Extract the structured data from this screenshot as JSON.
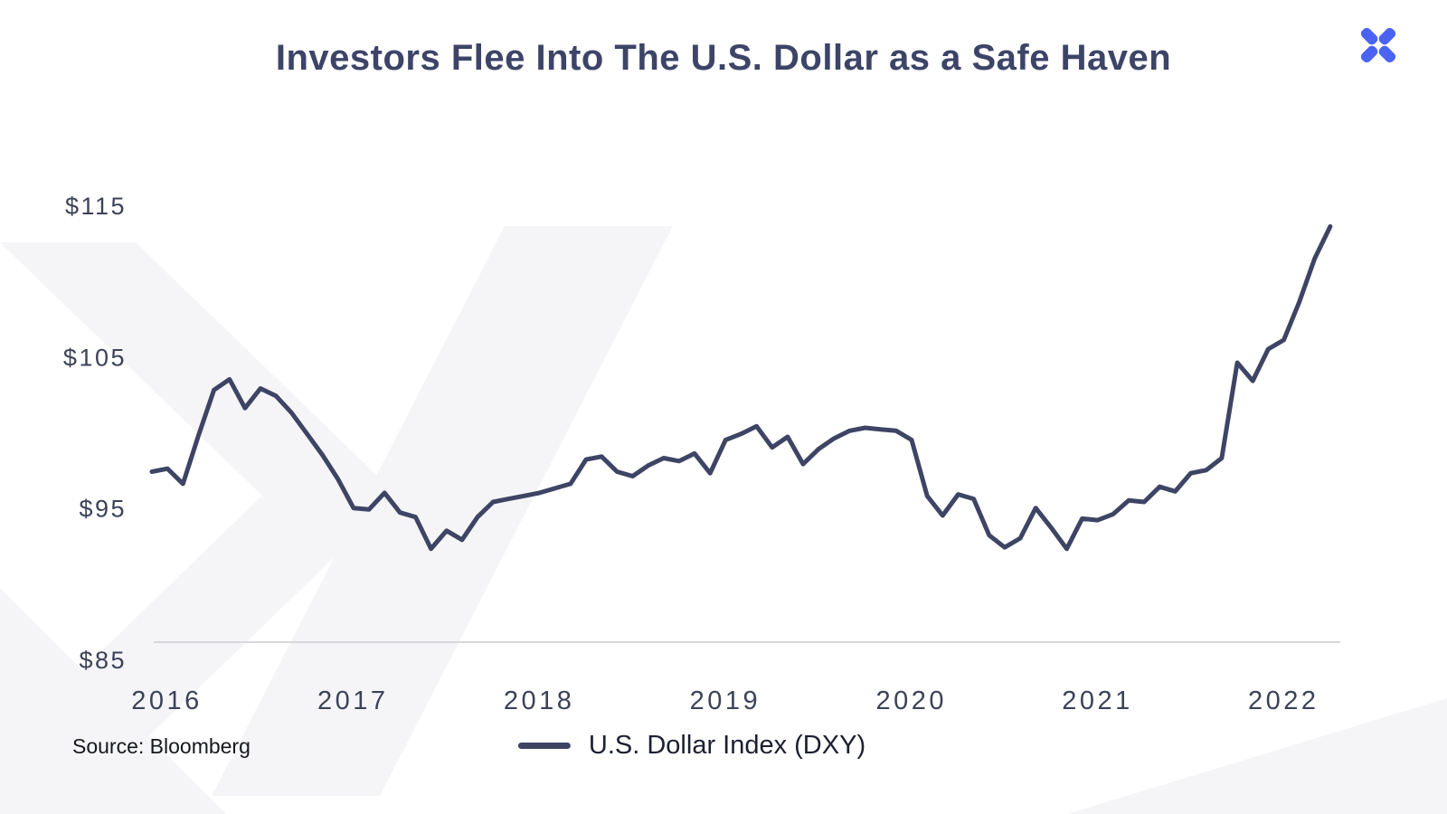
{
  "header": {
    "title": "Investors Flee Into The U.S. Dollar as a Safe Haven"
  },
  "brand": {
    "logo": "pinwheel-x",
    "color": "#4a63f2"
  },
  "source": {
    "text": "Source: Bloomberg"
  },
  "legend": {
    "label": "U.S. Dollar Index (DXY)"
  },
  "chart_data": {
    "type": "line",
    "title": "Investors Flee Into The U.S. Dollar as a Safe Haven",
    "series": [
      {
        "name": "U.S. Dollar Index (DXY)",
        "x_start": 2015.92,
        "x_step": 0.0833,
        "values": [
          97.4,
          97.6,
          96.6,
          99.8,
          102.8,
          103.5,
          101.6,
          102.9,
          102.4,
          101.3,
          99.9,
          98.5,
          96.9,
          95.0,
          94.9,
          96.0,
          94.7,
          94.4,
          92.3,
          93.5,
          92.9,
          94.4,
          95.4,
          95.6,
          95.8,
          96.0,
          96.3,
          96.6,
          98.2,
          98.4,
          97.4,
          97.1,
          97.8,
          98.3,
          98.1,
          98.6,
          97.3,
          99.5,
          99.9,
          100.4,
          99.0,
          99.7,
          97.9,
          98.9,
          99.6,
          100.1,
          100.3,
          100.2,
          100.1,
          99.5,
          95.8,
          94.5,
          95.9,
          95.6,
          93.2,
          92.4,
          93.0,
          95.0,
          93.7,
          92.3,
          94.3,
          94.2,
          94.6,
          95.5,
          95.4,
          96.4,
          96.1,
          97.3,
          97.5,
          98.3,
          104.6,
          103.4,
          105.5,
          106.1,
          108.6,
          111.5,
          113.6
        ]
      }
    ],
    "x_ticks": [
      2016,
      2017,
      2018,
      2019,
      2020,
      2021,
      2022
    ],
    "y_ticks": [
      115,
      105,
      95,
      85
    ],
    "y_tick_labels": [
      "$115",
      "$105",
      "$95",
      "$85"
    ],
    "ylim": [
      85,
      115
    ],
    "xlim": [
      2015.9,
      2022.4
    ],
    "xlabel": "",
    "ylabel": "",
    "grid": false,
    "legend_position": "bottom",
    "line_color": "#3e4464",
    "axis_color": "#d8d8dc",
    "label_color": "#3c4257"
  }
}
